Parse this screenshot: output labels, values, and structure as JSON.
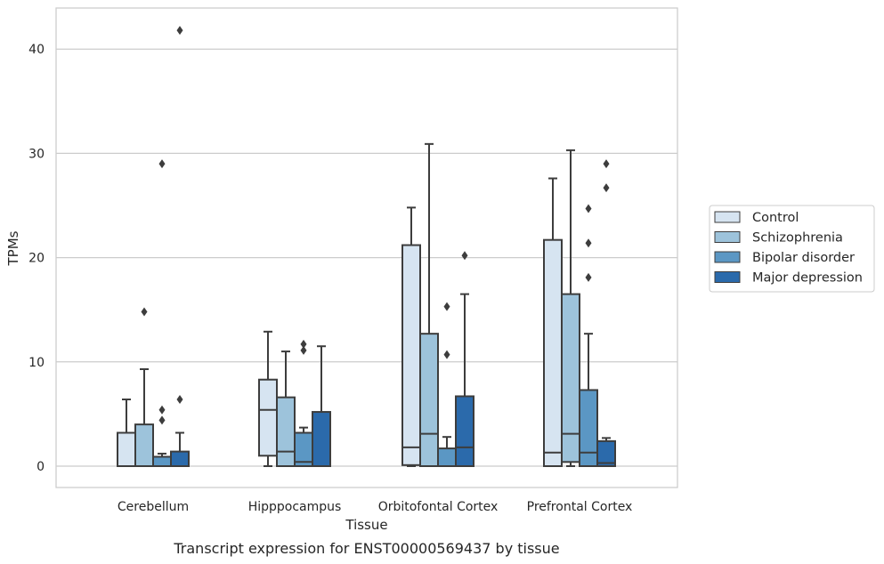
{
  "caption": "Transcript expression for ENST00000569437 by tissue",
  "chart_data": {
    "type": "boxplot",
    "title": "",
    "xlabel": "Tissue",
    "ylabel": "TPMs",
    "ylim": [
      -2,
      44
    ],
    "yticks": [
      0,
      10,
      20,
      30,
      40
    ],
    "grid": "horizontal",
    "legend_position": "right",
    "categories": [
      "Cerebellum",
      "Hipppocampus",
      "Orbitofontal Cortex",
      "Prefrontal Cortex"
    ],
    "series": [
      {
        "name": "Control",
        "color": "#d6e4f1",
        "boxes": [
          {
            "min": 0,
            "q1": 0,
            "median": 0,
            "q3": 3.2,
            "max": 6.4,
            "outliers": []
          },
          {
            "min": 0,
            "q1": 1.0,
            "median": 5.4,
            "q3": 8.3,
            "max": 12.9,
            "outliers": []
          },
          {
            "min": 0,
            "q1": 0.1,
            "median": 1.8,
            "q3": 21.2,
            "max": 24.8,
            "outliers": []
          },
          {
            "min": 0,
            "q1": 0,
            "median": 1.3,
            "q3": 21.7,
            "max": 27.6,
            "outliers": []
          }
        ]
      },
      {
        "name": "Schizophrenia",
        "color": "#9dc3db",
        "boxes": [
          {
            "min": 0,
            "q1": 0,
            "median": 0,
            "q3": 4.0,
            "max": 9.3,
            "outliers": [
              14.8
            ]
          },
          {
            "min": 0,
            "q1": 0,
            "median": 1.4,
            "q3": 6.6,
            "max": 11.0,
            "outliers": []
          },
          {
            "min": 0,
            "q1": 0,
            "median": 3.1,
            "q3": 12.7,
            "max": 30.9,
            "outliers": []
          },
          {
            "min": 0,
            "q1": 0.4,
            "median": 3.1,
            "q3": 16.5,
            "max": 30.3,
            "outliers": []
          }
        ]
      },
      {
        "name": "Bipolar disorder",
        "color": "#5b97c4",
        "boxes": [
          {
            "min": 0,
            "q1": 0,
            "median": 0,
            "q3": 0.9,
            "max": 1.2,
            "outliers": [
              4.4,
              5.4,
              29.0
            ]
          },
          {
            "min": 0,
            "q1": 0,
            "median": 0.4,
            "q3": 3.2,
            "max": 3.7,
            "outliers": [
              11.1,
              11.7
            ]
          },
          {
            "min": 0,
            "q1": 0,
            "median": 0,
            "q3": 1.7,
            "max": 2.8,
            "outliers": [
              10.7,
              15.3
            ]
          },
          {
            "min": 0,
            "q1": 0,
            "median": 1.3,
            "q3": 7.3,
            "max": 12.7,
            "outliers": [
              18.1,
              21.4,
              24.7
            ]
          }
        ]
      },
      {
        "name": "Major depression",
        "color": "#2b6aab",
        "boxes": [
          {
            "min": 0,
            "q1": 0,
            "median": 0,
            "q3": 1.4,
            "max": 3.2,
            "outliers": [
              6.4,
              41.8
            ]
          },
          {
            "min": 0,
            "q1": 0,
            "median": 0,
            "q3": 5.2,
            "max": 11.5,
            "outliers": []
          },
          {
            "min": 0,
            "q1": 0,
            "median": 1.8,
            "q3": 6.7,
            "max": 16.5,
            "outliers": [
              20.2
            ]
          },
          {
            "min": 0,
            "q1": 0,
            "median": 0.3,
            "q3": 2.4,
            "max": 2.7,
            "outliers": [
              26.7,
              29.0
            ]
          }
        ]
      }
    ]
  }
}
